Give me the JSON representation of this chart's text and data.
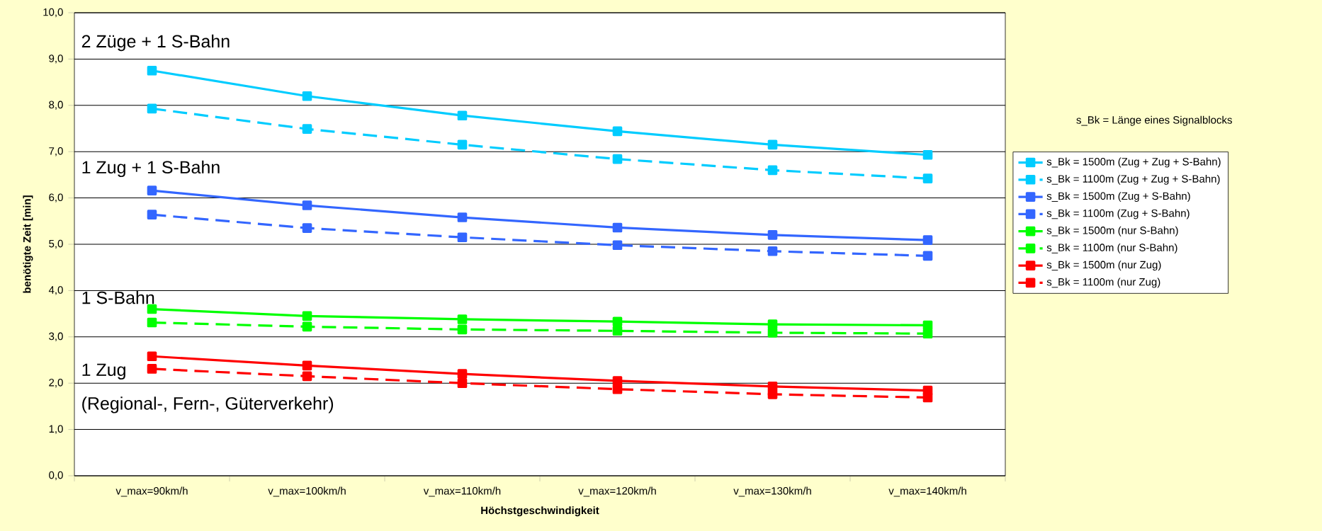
{
  "chart_data": {
    "type": "line",
    "xlabel": "Höchstgeschwindigkeit",
    "ylabel": "benötigte Zeit [min]",
    "legend_title": "s_Bk = Länge eines Signalblocks",
    "categories": [
      "v_max=90km/h",
      "v_max=100km/h",
      "v_max=110km/h",
      "v_max=120km/h",
      "v_max=130km/h",
      "v_max=140km/h"
    ],
    "ylim": [
      0,
      10
    ],
    "yticks": [
      {
        "value": 0,
        "label": "0,0"
      },
      {
        "value": 1,
        "label": "1,0"
      },
      {
        "value": 2,
        "label": "2,0"
      },
      {
        "value": 3,
        "label": "3,0"
      },
      {
        "value": 4,
        "label": "4,0"
      },
      {
        "value": 5,
        "label": "5,0"
      },
      {
        "value": 6,
        "label": "6,0"
      },
      {
        "value": 7,
        "label": "7,0"
      },
      {
        "value": 8,
        "label": "8,0"
      },
      {
        "value": 9,
        "label": "9,0"
      },
      {
        "value": 10,
        "label": "10,0"
      }
    ],
    "grid": "y",
    "legend": "right",
    "marker": "square",
    "series": [
      {
        "name": "s_Bk = 1500m (Zug + Zug + S-Bahn)",
        "color": "#00ccff",
        "line_style": "solid",
        "values": [
          8.75,
          8.2,
          7.78,
          7.44,
          7.15,
          6.93
        ]
      },
      {
        "name": "s_Bk = 1100m (Zug + Zug + S-Bahn)",
        "color": "#00ccff",
        "line_style": "dashed",
        "values": [
          7.93,
          7.49,
          7.15,
          6.84,
          6.6,
          6.42
        ]
      },
      {
        "name": "s_Bk = 1500m (Zug + S-Bahn)",
        "color": "#3366ff",
        "line_style": "solid",
        "values": [
          6.16,
          5.84,
          5.58,
          5.36,
          5.2,
          5.09
        ]
      },
      {
        "name": "s_Bk = 1100m (Zug + S-Bahn)",
        "color": "#3366ff",
        "line_style": "dashed",
        "values": [
          5.64,
          5.35,
          5.15,
          4.98,
          4.85,
          4.75
        ]
      },
      {
        "name": "s_Bk = 1500m (nur S-Bahn)",
        "color": "#00ff00",
        "line_style": "solid",
        "values": [
          3.6,
          3.45,
          3.38,
          3.33,
          3.27,
          3.25
        ]
      },
      {
        "name": "s_Bk = 1100m (nur S-Bahn)",
        "color": "#00ff00",
        "line_style": "dashed",
        "values": [
          3.31,
          3.22,
          3.16,
          3.13,
          3.09,
          3.07
        ]
      },
      {
        "name": "s_Bk = 1500m (nur Zug)",
        "color": "#ff0000",
        "line_style": "solid",
        "values": [
          2.58,
          2.38,
          2.2,
          2.05,
          1.93,
          1.84
        ]
      },
      {
        "name": "s_Bk = 1100m (nur Zug)",
        "color": "#ff0000",
        "line_style": "dashed",
        "values": [
          2.31,
          2.15,
          2.0,
          1.87,
          1.76,
          1.69
        ]
      }
    ],
    "annotations": [
      "2 Züge + 1 S-Bahn",
      "1 Zug + 1 S-Bahn",
      "1 S-Bahn",
      "1 Zug",
      "(Regional-, Fern-, Güterverkehr)"
    ]
  }
}
